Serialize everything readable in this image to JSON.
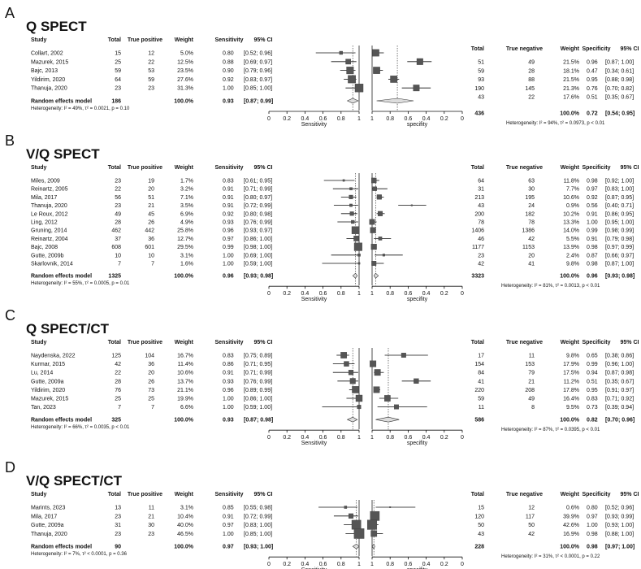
{
  "panels": [
    {
      "letter": "A",
      "title": "Q SPECT",
      "headers": {
        "study": "Study",
        "total": "Total",
        "tp": "True positive",
        "weight": "Weight",
        "sens": "Sensitivity",
        "ci": "95% CI",
        "total2": "Total",
        "tn": "True negative",
        "weight2": "Weight",
        "spec": "Specificity",
        "ci2": "95% CI"
      },
      "studies": [
        {
          "name": "Collart, 2002",
          "total": "15",
          "tp": "12",
          "weight": "5.0%",
          "sens": 0.8,
          "sens_text": "0.80",
          "ci": "[0.52; 0.96]",
          "lo": 0.52,
          "hi": 0.96,
          "total2": "51",
          "tn": "49",
          "weight2": "21.5%",
          "spec": 0.96,
          "spec_text": "0.96",
          "ci2": "[0.87; 1.00]",
          "lo2": 0.87,
          "hi2": 1.0
        },
        {
          "name": "Mazurek, 2015",
          "total": "25",
          "tp": "22",
          "weight": "12.5%",
          "sens": 0.88,
          "sens_text": "0.88",
          "ci": "[0.69; 0.97]",
          "lo": 0.69,
          "hi": 0.97,
          "total2": "59",
          "tn": "28",
          "weight2": "18.1%",
          "spec": 0.47,
          "spec_text": "0.47",
          "ci2": "[0.34; 0.61]",
          "lo2": 0.34,
          "hi2": 0.61
        },
        {
          "name": "Bajc, 2013",
          "total": "59",
          "tp": "53",
          "weight": "23.5%",
          "sens": 0.9,
          "sens_text": "0.90",
          "ci": "[0.79; 0.96]",
          "lo": 0.79,
          "hi": 0.96,
          "total2": "93",
          "tn": "88",
          "weight2": "21.5%",
          "spec": 0.95,
          "spec_text": "0.95",
          "ci2": "[0.88; 0.98]",
          "lo2": 0.88,
          "hi2": 0.98
        },
        {
          "name": "Yildirim, 2020",
          "total": "64",
          "tp": "59",
          "weight": "27.6%",
          "sens": 0.92,
          "sens_text": "0.92",
          "ci": "[0.83; 0.97]",
          "lo": 0.83,
          "hi": 0.97,
          "total2": "190",
          "tn": "145",
          "weight2": "21.3%",
          "spec": 0.76,
          "spec_text": "0.76",
          "ci2": "[0.70; 0.82]",
          "lo2": 0.7,
          "hi2": 0.82
        },
        {
          "name": "Thanuja, 2020",
          "total": "23",
          "tp": "23",
          "weight": "31.3%",
          "sens": 1.0,
          "sens_text": "1.00",
          "ci": "[0.85; 1.00]",
          "lo": 0.85,
          "hi": 1.0,
          "total2": "43",
          "tn": "22",
          "weight2": "17.6%",
          "spec": 0.51,
          "spec_text": "0.51",
          "ci2": "[0.35; 0.67]",
          "lo2": 0.35,
          "hi2": 0.67
        }
      ],
      "summary": {
        "label": "Random effects model",
        "total": "186",
        "weight": "100.0%",
        "sens": 0.93,
        "sens_text": "0.93",
        "ci": "[0.87; 0.99]",
        "lo": 0.87,
        "hi": 0.99,
        "total2": "436",
        "weight2": "100.0%",
        "spec": 0.72,
        "spec_text": "0.72",
        "ci2": "[0.54; 0.95]",
        "lo2": 0.54,
        "hi2": 0.95
      },
      "het_sens": "Heterogeneity: I² = 49%, τ² = 0.0021, p = 0.10",
      "het_spec": "Heterogeneity: I² = 94%, τ² = 0.0973, p < 0.01"
    },
    {
      "letter": "B",
      "title": "V/Q SPECT",
      "headers": {
        "study": "Study",
        "total": "Total",
        "tp": "True positive",
        "weight": "Weight",
        "sens": "Sensitivity",
        "ci": "95% CI",
        "total2": "Total",
        "tn": "True negative",
        "weight2": "Weight",
        "spec": "Specificity",
        "ci2": "95% CI"
      },
      "studies": [
        {
          "name": "Miles, 2009",
          "total": "23",
          "tp": "19",
          "weight": "1.7%",
          "sens": 0.83,
          "sens_text": "0.83",
          "ci": "[0.61; 0.95]",
          "lo": 0.61,
          "hi": 0.95,
          "total2": "64",
          "tn": "63",
          "weight2": "11.8%",
          "spec": 0.98,
          "spec_text": "0.98",
          "ci2": "[0.92; 1.00]",
          "lo2": 0.92,
          "hi2": 1.0
        },
        {
          "name": "Reinartz, 2005",
          "total": "22",
          "tp": "20",
          "weight": "3.2%",
          "sens": 0.91,
          "sens_text": "0.91",
          "ci": "[0.71; 0.99]",
          "lo": 0.71,
          "hi": 0.99,
          "total2": "31",
          "tn": "30",
          "weight2": "7.7%",
          "spec": 0.97,
          "spec_text": "0.97",
          "ci2": "[0.83; 1.00]",
          "lo2": 0.83,
          "hi2": 1.0
        },
        {
          "name": "Mila, 2017",
          "total": "56",
          "tp": "51",
          "weight": "7.1%",
          "sens": 0.91,
          "sens_text": "0.91",
          "ci": "[0.80; 0.97]",
          "lo": 0.8,
          "hi": 0.97,
          "total2": "213",
          "tn": "195",
          "weight2": "10.6%",
          "spec": 0.92,
          "spec_text": "0.92",
          "ci2": "[0.87; 0.95]",
          "lo2": 0.87,
          "hi2": 0.95
        },
        {
          "name": "Thanuja, 2020",
          "total": "23",
          "tp": "21",
          "weight": "3.5%",
          "sens": 0.91,
          "sens_text": "0.91",
          "ci": "[0.72; 0.99]",
          "lo": 0.72,
          "hi": 0.99,
          "total2": "43",
          "tn": "24",
          "weight2": "0.9%",
          "spec": 0.56,
          "spec_text": "0.56",
          "ci2": "[0.40; 0.71]",
          "lo2": 0.4,
          "hi2": 0.71
        },
        {
          "name": "Le Roux, 2012",
          "total": "49",
          "tp": "45",
          "weight": "6.9%",
          "sens": 0.92,
          "sens_text": "0.92",
          "ci": "[0.80; 0.98]",
          "lo": 0.8,
          "hi": 0.98,
          "total2": "200",
          "tn": "182",
          "weight2": "10.2%",
          "spec": 0.91,
          "spec_text": "0.91",
          "ci2": "[0.86; 0.95]",
          "lo2": 0.86,
          "hi2": 0.95
        },
        {
          "name": "Ling, 2012",
          "total": "28",
          "tp": "26",
          "weight": "4.9%",
          "sens": 0.93,
          "sens_text": "0.93",
          "ci": "[0.76; 0.99]",
          "lo": 0.76,
          "hi": 0.99,
          "total2": "78",
          "tn": "78",
          "weight2": "13.3%",
          "spec": 1.0,
          "spec_text": "1.00",
          "ci2": "[0.95; 1.00]",
          "lo2": 0.95,
          "hi2": 1.0
        },
        {
          "name": "Gruning, 2014",
          "total": "462",
          "tp": "442",
          "weight": "25.8%",
          "sens": 0.96,
          "sens_text": "0.96",
          "ci": "[0.93; 0.97]",
          "lo": 0.93,
          "hi": 0.97,
          "total2": "1406",
          "tn": "1386",
          "weight2": "14.0%",
          "spec": 0.99,
          "spec_text": "0.99",
          "ci2": "[0.98; 0.99]",
          "lo2": 0.98,
          "hi2": 0.99
        },
        {
          "name": "Reinartz, 2004",
          "total": "37",
          "tp": "36",
          "weight": "12.7%",
          "sens": 0.97,
          "sens_text": "0.97",
          "ci": "[0.86; 1.00]",
          "lo": 0.86,
          "hi": 1.0,
          "total2": "46",
          "tn": "42",
          "weight2": "5.5%",
          "spec": 0.91,
          "spec_text": "0.91",
          "ci2": "[0.79; 0.98]",
          "lo2": 0.79,
          "hi2": 0.98
        },
        {
          "name": "Bajc, 2008",
          "total": "608",
          "tp": "601",
          "weight": "29.5%",
          "sens": 0.99,
          "sens_text": "0.99",
          "ci": "[0.98; 1.00]",
          "lo": 0.98,
          "hi": 1.0,
          "total2": "1177",
          "tn": "1153",
          "weight2": "13.9%",
          "spec": 0.98,
          "spec_text": "0.98",
          "ci2": "[0.97; 0.99]",
          "lo2": 0.97,
          "hi2": 0.99
        },
        {
          "name": "Gutte, 2009b",
          "total": "10",
          "tp": "10",
          "weight": "3.1%",
          "sens": 1.0,
          "sens_text": "1.00",
          "ci": "[0.69; 1.00]",
          "lo": 0.69,
          "hi": 1.0,
          "total2": "23",
          "tn": "20",
          "weight2": "2.4%",
          "spec": 0.87,
          "spec_text": "0.87",
          "ci2": "[0.66; 0.97]",
          "lo2": 0.66,
          "hi2": 0.97
        },
        {
          "name": "Skarlovnik, 2014",
          "total": "7",
          "tp": "7",
          "weight": "1.6%",
          "sens": 1.0,
          "sens_text": "1.00",
          "ci": "[0.59; 1.00]",
          "lo": 0.59,
          "hi": 1.0,
          "total2": "42",
          "tn": "41",
          "weight2": "9.8%",
          "spec": 0.98,
          "spec_text": "0.98",
          "ci2": "[0.87; 1.00]",
          "lo2": 0.87,
          "hi2": 1.0
        }
      ],
      "summary": {
        "label": "Random effects model",
        "total": "1325",
        "weight": "100.0%",
        "sens": 0.96,
        "sens_text": "0.96",
        "ci": "[0.93; 0.98]",
        "lo": 0.93,
        "hi": 0.98,
        "total2": "3323",
        "weight2": "100.0%",
        "spec": 0.96,
        "spec_text": "0.96",
        "ci2": "[0.93; 0.98]",
        "lo2": 0.93,
        "hi2": 0.98
      },
      "het_sens": "Heterogeneity: I² = 55%, τ² = 0.0005, p = 0.01",
      "het_spec": "Heterogeneity: I² = 81%, τ² = 0.0013, p < 0.01"
    },
    {
      "letter": "C",
      "title": "Q SPECT/CT",
      "headers": {
        "study": "Study",
        "total": "Total",
        "tp": "True positive",
        "weight": "Weight",
        "sens": "Sensitivity",
        "ci": "95% CI",
        "total2": "Total",
        "tn": "True negative",
        "weight2": "Weight",
        "spec": "Specificity",
        "ci2": "95% CI"
      },
      "studies": [
        {
          "name": "Naydenska, 2022",
          "total": "125",
          "tp": "104",
          "weight": "16.7%",
          "sens": 0.83,
          "sens_text": "0.83",
          "ci": "[0.75; 0.89]",
          "lo": 0.75,
          "hi": 0.89,
          "total2": "17",
          "tn": "11",
          "weight2": "9.8%",
          "spec": 0.65,
          "spec_text": "0.65",
          "ci2": "[0.38; 0.86]",
          "lo2": 0.38,
          "hi2": 0.86
        },
        {
          "name": "Kurmar, 2015",
          "total": "42",
          "tp": "36",
          "weight": "11.4%",
          "sens": 0.86,
          "sens_text": "0.86",
          "ci": "[0.71; 0.95]",
          "lo": 0.71,
          "hi": 0.95,
          "total2": "154",
          "tn": "153",
          "weight2": "17.9%",
          "spec": 0.99,
          "spec_text": "0.99",
          "ci2": "[0.96; 1.00]",
          "lo2": 0.96,
          "hi2": 1.0
        },
        {
          "name": "Lu, 2014",
          "total": "22",
          "tp": "20",
          "weight": "10.6%",
          "sens": 0.91,
          "sens_text": "0.91",
          "ci": "[0.71; 0.99]",
          "lo": 0.71,
          "hi": 0.99,
          "total2": "84",
          "tn": "79",
          "weight2": "17.5%",
          "spec": 0.94,
          "spec_text": "0.94",
          "ci2": "[0.87; 0.98]",
          "lo2": 0.87,
          "hi2": 0.98
        },
        {
          "name": "Gutte, 2009a",
          "total": "28",
          "tp": "26",
          "weight": "13.7%",
          "sens": 0.93,
          "sens_text": "0.93",
          "ci": "[0.76; 0.99]",
          "lo": 0.76,
          "hi": 0.99,
          "total2": "41",
          "tn": "21",
          "weight2": "11.2%",
          "spec": 0.51,
          "spec_text": "0.51",
          "ci2": "[0.35; 0.67]",
          "lo2": 0.35,
          "hi2": 0.67
        },
        {
          "name": "Yildirim, 2020",
          "total": "76",
          "tp": "73",
          "weight": "21.1%",
          "sens": 0.96,
          "sens_text": "0.96",
          "ci": "[0.89; 0.99]",
          "lo": 0.89,
          "hi": 0.99,
          "total2": "220",
          "tn": "208",
          "weight2": "17.8%",
          "spec": 0.95,
          "spec_text": "0.95",
          "ci2": "[0.91; 0.97]",
          "lo2": 0.91,
          "hi2": 0.97
        },
        {
          "name": "Mazurek, 2015",
          "total": "25",
          "tp": "25",
          "weight": "19.9%",
          "sens": 1.0,
          "sens_text": "1.00",
          "ci": "[0.86; 1.00]",
          "lo": 0.86,
          "hi": 1.0,
          "total2": "59",
          "tn": "49",
          "weight2": "16.4%",
          "spec": 0.83,
          "spec_text": "0.83",
          "ci2": "[0.71; 0.92]",
          "lo2": 0.71,
          "hi2": 0.92
        },
        {
          "name": "Tan, 2023",
          "total": "7",
          "tp": "7",
          "weight": "6.6%",
          "sens": 1.0,
          "sens_text": "1.00",
          "ci": "[0.59; 1.00]",
          "lo": 0.59,
          "hi": 1.0,
          "total2": "11",
          "tn": "8",
          "weight2": "9.5%",
          "spec": 0.73,
          "spec_text": "0.73",
          "ci2": "[0.39; 0.94]",
          "lo2": 0.39,
          "hi2": 0.94
        }
      ],
      "summary": {
        "label": "Random effects model",
        "total": "325",
        "weight": "100.0%",
        "sens": 0.93,
        "sens_text": "0.93",
        "ci": "[0.87; 0.98]",
        "lo": 0.87,
        "hi": 0.98,
        "total2": "586",
        "weight2": "100.0%",
        "spec": 0.82,
        "spec_text": "0.82",
        "ci2": "[0.70; 0.96]",
        "lo2": 0.7,
        "hi2": 0.96
      },
      "het_sens": "Heterogeneity: I² = 66%, τ² = 0.0035, p < 0.01",
      "het_spec": "Heterogeneity: I² = 87%, τ² = 0.0395, p < 0.01"
    },
    {
      "letter": "D",
      "title": "V/Q SPECT/CT",
      "headers": {
        "study": "Study",
        "total": "Total",
        "tp": "True positive",
        "weight": "Weight",
        "sens": "Sensitivity",
        "ci": "95% CI",
        "total2": "Total",
        "tn": "True negative",
        "weight2": "Weight",
        "spec": "Specificity",
        "ci2": "95% CI"
      },
      "studies": [
        {
          "name": "Marints, 2023",
          "total": "13",
          "tp": "11",
          "weight": "3.1%",
          "sens": 0.85,
          "sens_text": "0.85",
          "ci": "[0.55; 0.98]",
          "lo": 0.55,
          "hi": 0.98,
          "total2": "15",
          "tn": "12",
          "weight2": "0.6%",
          "spec": 0.8,
          "spec_text": "0.80",
          "ci2": "[0.52; 0.96]",
          "lo2": 0.52,
          "hi2": 0.96
        },
        {
          "name": "Mila, 2017",
          "total": "23",
          "tp": "21",
          "weight": "10.4%",
          "sens": 0.91,
          "sens_text": "0.91",
          "ci": "[0.72; 0.99]",
          "lo": 0.72,
          "hi": 0.99,
          "total2": "120",
          "tn": "117",
          "weight2": "39.9%",
          "spec": 0.97,
          "spec_text": "0.97",
          "ci2": "[0.93; 0.99]",
          "lo2": 0.93,
          "hi2": 0.99
        },
        {
          "name": "Gutte, 2009a",
          "total": "31",
          "tp": "30",
          "weight": "40.0%",
          "sens": 0.97,
          "sens_text": "0.97",
          "ci": "[0.83; 1.00]",
          "lo": 0.83,
          "hi": 1.0,
          "total2": "50",
          "tn": "50",
          "weight2": "42.6%",
          "spec": 1.0,
          "spec_text": "1.00",
          "ci2": "[0.93; 1.00]",
          "lo2": 0.93,
          "hi2": 1.0
        },
        {
          "name": "Thanuja, 2020",
          "total": "23",
          "tp": "23",
          "weight": "46.5%",
          "sens": 1.0,
          "sens_text": "1.00",
          "ci": "[0.85; 1.00]",
          "lo": 0.85,
          "hi": 1.0,
          "total2": "43",
          "tn": "42",
          "weight2": "16.9%",
          "spec": 0.98,
          "spec_text": "0.98",
          "ci2": "[0.88; 1.00]",
          "lo2": 0.88,
          "hi2": 1.0
        }
      ],
      "summary": {
        "label": "Random effects model",
        "total": "90",
        "weight": "100.0%",
        "sens": 0.97,
        "sens_text": "0.97",
        "ci": "[0.93; 1.00]",
        "lo": 0.93,
        "hi": 1.0,
        "total2": "228",
        "weight2": "100.0%",
        "spec": 0.98,
        "spec_text": "0.98",
        "ci2": "[0.97; 1.00]",
        "lo2": 0.97,
        "hi2": 1.0
      },
      "het_sens": "Heterogeneity: I² = 7%, τ² < 0.0001, p = 0.36",
      "het_spec": "Heterogeneity: I² = 31%, τ² < 0.0001, p = 0.22"
    }
  ],
  "axis": {
    "sens_ticks": [
      "0",
      "0.2",
      "0.4",
      "0.6",
      "0.8",
      "1"
    ],
    "spec_ticks": [
      "1",
      "0.8",
      "0.6",
      "0.4",
      "0.2",
      "0"
    ],
    "sens_label": "Sensitivity",
    "spec_label": "specifity",
    "xlim": [
      0,
      1
    ]
  },
  "chart_data": [
    {
      "type": "forest",
      "title": "Q SPECT",
      "sensitivity": [
        0.8,
        0.88,
        0.9,
        0.92,
        1.0
      ],
      "specificity": [
        0.96,
        0.47,
        0.95,
        0.76,
        0.51
      ],
      "pooled_sensitivity": 0.93,
      "pooled_specificity": 0.72
    },
    {
      "type": "forest",
      "title": "V/Q SPECT",
      "sensitivity": [
        0.83,
        0.91,
        0.91,
        0.91,
        0.92,
        0.93,
        0.96,
        0.97,
        0.99,
        1.0,
        1.0
      ],
      "specificity": [
        0.98,
        0.97,
        0.92,
        0.56,
        0.91,
        1.0,
        0.99,
        0.91,
        0.98,
        0.87,
        0.98
      ],
      "pooled_sensitivity": 0.96,
      "pooled_specificity": 0.96
    },
    {
      "type": "forest",
      "title": "Q SPECT/CT",
      "sensitivity": [
        0.83,
        0.86,
        0.91,
        0.93,
        0.96,
        1.0,
        1.0
      ],
      "specificity": [
        0.65,
        0.99,
        0.94,
        0.51,
        0.95,
        0.83,
        0.73
      ],
      "pooled_sensitivity": 0.93,
      "pooled_specificity": 0.82
    },
    {
      "type": "forest",
      "title": "V/Q SPECT/CT",
      "sensitivity": [
        0.85,
        0.91,
        0.97,
        1.0
      ],
      "specificity": [
        0.8,
        0.97,
        1.0,
        0.98
      ],
      "pooled_sensitivity": 0.97,
      "pooled_specificity": 0.98
    }
  ]
}
